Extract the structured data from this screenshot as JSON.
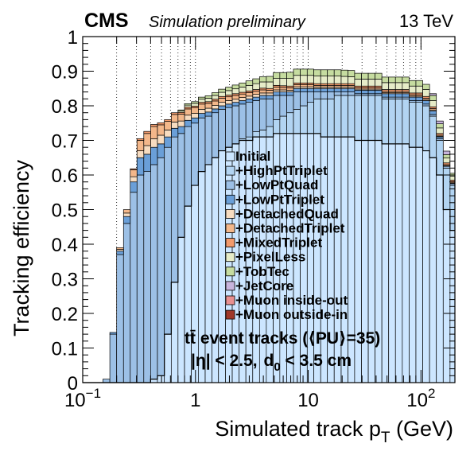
{
  "header": {
    "experiment": "CMS",
    "status": "Simulation preliminary",
    "energy": "13 TeV"
  },
  "chart_data": {
    "type": "area",
    "title": "",
    "xlabel": "Simulated track p",
    "xlabel_subscript": "T",
    "xlabel_unit": " (GeV)",
    "ylabel": "Tracking efficiency",
    "xscale": "log",
    "xlim": [
      0.1,
      200
    ],
    "ylim": [
      0,
      1
    ],
    "grid": "vertical dotted",
    "legend_position": "center-right",
    "x_tick_labels": [
      {
        "value": 0.1,
        "base": "10",
        "exp": "−1"
      },
      {
        "value": 1,
        "base": "1",
        "exp": ""
      },
      {
        "value": 10,
        "base": "10",
        "exp": ""
      },
      {
        "value": 100,
        "base": "10",
        "exp": "2"
      }
    ],
    "y_tick_labels": [
      "0",
      "0.1",
      "0.2",
      "0.3",
      "0.4",
      "0.5",
      "0.6",
      "0.7",
      "0.8",
      "0.9",
      "1"
    ],
    "bin_edges": [
      0.1,
      0.115,
      0.132,
      0.151,
      0.174,
      0.2,
      0.23,
      0.264,
      0.303,
      0.348,
      0.4,
      0.46,
      0.53,
      0.61,
      0.7,
      0.8,
      0.92,
      1.06,
      1.22,
      1.4,
      1.6,
      1.85,
      2.12,
      2.44,
      2.8,
      3.22,
      3.7,
      4.25,
      4.9,
      5.6,
      6.45,
      7.4,
      8.5,
      9.8,
      11.2,
      12.9,
      14.8,
      17.0,
      19.6,
      22.5,
      25.8,
      29.7,
      34.1,
      39.2,
      45.0,
      51.7,
      59.4,
      68.3,
      78.5,
      90.2,
      103.7,
      119.2,
      137.0,
      157.5,
      181.0,
      200.0
    ],
    "series": [
      {
        "name": "Initial",
        "color": "#cce6ff",
        "values": [
          0,
          0,
          0,
          0,
          0,
          0,
          0,
          0,
          0,
          0,
          0.01,
          0.02,
          0.14,
          0.29,
          0.42,
          0.51,
          0.57,
          0.61,
          0.63,
          0.65,
          0.67,
          0.68,
          0.69,
          0.7,
          0.7,
          0.71,
          0.71,
          0.71,
          0.72,
          0.72,
          0.72,
          0.72,
          0.72,
          0.72,
          0.72,
          0.71,
          0.71,
          0.71,
          0.71,
          0.71,
          0.7,
          0.7,
          0.7,
          0.7,
          0.69,
          0.69,
          0.69,
          0.69,
          0.68,
          0.68,
          0.67,
          0.65,
          0.6,
          0.5,
          0.44
        ]
      },
      {
        "name": "+HighPtTriplet",
        "color": "#b2d4f2",
        "values": [
          0,
          0,
          0,
          0,
          0,
          0,
          0,
          0,
          0,
          0,
          0,
          0,
          0,
          0,
          0,
          0,
          0,
          0,
          0,
          0,
          0,
          0,
          0,
          0.005,
          0.01,
          0.015,
          0.02,
          0.03,
          0.04,
          0.05,
          0.06,
          0.07,
          0.08,
          0.09,
          0.1,
          0.11,
          0.11,
          0.12,
          0.12,
          0.12,
          0.13,
          0.13,
          0.13,
          0.13,
          0.13,
          0.13,
          0.13,
          0.13,
          0.13,
          0.13,
          0.13,
          0.12,
          0.1,
          0.12,
          0.13
        ]
      },
      {
        "name": "+LowPtQuad",
        "color": "#9cc0e6",
        "values": [
          0,
          0,
          0,
          0.01,
          0.14,
          0.37,
          0.46,
          0.55,
          0.6,
          0.61,
          0.62,
          0.63,
          0.54,
          0.42,
          0.3,
          0.23,
          0.18,
          0.155,
          0.14,
          0.13,
          0.12,
          0.115,
          0.11,
          0.1,
          0.1,
          0.09,
          0.09,
          0.08,
          0.07,
          0.06,
          0.05,
          0.05,
          0.04,
          0.03,
          0.02,
          0.02,
          0.02,
          0.01,
          0.01,
          0.01,
          0.005,
          0.005,
          0.005,
          0.005,
          0.005,
          0.005,
          0.005,
          0.005,
          0.005,
          0.005,
          0.005,
          0.005,
          0.005,
          0.005,
          0.005
        ]
      },
      {
        "name": "+LowPtTriplet",
        "color": "#6a9fd8",
        "values": [
          0,
          0,
          0,
          0,
          0.005,
          0.01,
          0.02,
          0.03,
          0.05,
          0.05,
          0.05,
          0.04,
          0.03,
          0.025,
          0.02,
          0.018,
          0.015,
          0.013,
          0.012,
          0.011,
          0.01,
          0.01,
          0.01,
          0.01,
          0.01,
          0.01,
          0.01,
          0.01,
          0.01,
          0.01,
          0.01,
          0.01,
          0.01,
          0.01,
          0.01,
          0.01,
          0.01,
          0.01,
          0.01,
          0.01,
          0.01,
          0.01,
          0.01,
          0.01,
          0.01,
          0.01,
          0.01,
          0.01,
          0.01,
          0.01,
          0.01,
          0.01,
          0.005,
          0,
          0
        ]
      },
      {
        "name": "+DetachedQuad",
        "color": "#f7dcc0",
        "values": [
          0,
          0,
          0,
          0,
          0,
          0.005,
          0.01,
          0.015,
          0.02,
          0.025,
          0.025,
          0.025,
          0.02,
          0.018,
          0.016,
          0.015,
          0.013,
          0.012,
          0.011,
          0.01,
          0.01,
          0.01,
          0.009,
          0.009,
          0.008,
          0.008,
          0.007,
          0.007,
          0.006,
          0.006,
          0.005,
          0.005,
          0.005,
          0.005,
          0.004,
          0.004,
          0.004,
          0.004,
          0.004,
          0.004,
          0.003,
          0.003,
          0.003,
          0.003,
          0.003,
          0.003,
          0.003,
          0.003,
          0.003,
          0.003,
          0.003,
          0.003,
          0.002,
          0.002,
          0.002
        ]
      },
      {
        "name": "+DetachedTriplet",
        "color": "#f3b78a",
        "values": [
          0,
          0,
          0,
          0,
          0,
          0.005,
          0.01,
          0.02,
          0.03,
          0.035,
          0.035,
          0.03,
          0.025,
          0.022,
          0.02,
          0.018,
          0.016,
          0.015,
          0.014,
          0.013,
          0.012,
          0.011,
          0.011,
          0.01,
          0.01,
          0.009,
          0.009,
          0.008,
          0.008,
          0.007,
          0.007,
          0.006,
          0.006,
          0.006,
          0.005,
          0.005,
          0.005,
          0.005,
          0.005,
          0.005,
          0.004,
          0.004,
          0.004,
          0.004,
          0.004,
          0.004,
          0.004,
          0.004,
          0.004,
          0.004,
          0.004,
          0.004,
          0.003,
          0.003,
          0.003
        ]
      },
      {
        "name": "+MixedTriplet",
        "color": "#f29a6c",
        "values": [
          0,
          0,
          0,
          0,
          0,
          0,
          0,
          0.003,
          0.005,
          0.006,
          0.006,
          0.006,
          0.005,
          0.005,
          0.005,
          0.005,
          0.005,
          0.005,
          0.005,
          0.005,
          0.005,
          0.005,
          0.005,
          0.005,
          0.005,
          0.005,
          0.005,
          0.005,
          0.005,
          0.005,
          0.005,
          0.005,
          0.005,
          0.005,
          0.005,
          0.005,
          0.005,
          0.005,
          0.005,
          0.005,
          0.005,
          0.005,
          0.005,
          0.005,
          0.005,
          0.005,
          0.005,
          0.005,
          0.005,
          0.005,
          0.005,
          0.005,
          0.005,
          0.005,
          0.005
        ]
      },
      {
        "name": "+PixelLess",
        "color": "#e6ecc8",
        "values": [
          0,
          0,
          0,
          0,
          0,
          0,
          0,
          0,
          0,
          0,
          0,
          0,
          0,
          0,
          0.004,
          0.006,
          0.008,
          0.009,
          0.01,
          0.011,
          0.012,
          0.013,
          0.014,
          0.015,
          0.016,
          0.017,
          0.018,
          0.019,
          0.02,
          0.021,
          0.022,
          0.022,
          0.022,
          0.022,
          0.022,
          0.022,
          0.022,
          0.022,
          0.021,
          0.02,
          0.02,
          0.02,
          0.02,
          0.02,
          0.02,
          0.02,
          0.02,
          0.02,
          0.02,
          0.02,
          0.02,
          0.018,
          0.016,
          0.014,
          0.012
        ]
      },
      {
        "name": "+TobTec",
        "color": "#c6dca0",
        "values": [
          0,
          0,
          0,
          0,
          0,
          0,
          0,
          0,
          0,
          0,
          0,
          0,
          0,
          0,
          0.003,
          0.004,
          0.005,
          0.006,
          0.007,
          0.008,
          0.009,
          0.01,
          0.011,
          0.012,
          0.013,
          0.014,
          0.015,
          0.016,
          0.017,
          0.017,
          0.018,
          0.018,
          0.018,
          0.018,
          0.018,
          0.018,
          0.018,
          0.018,
          0.018,
          0.018,
          0.017,
          0.017,
          0.017,
          0.017,
          0.016,
          0.016,
          0.016,
          0.016,
          0.016,
          0.016,
          0.015,
          0.015,
          0.012,
          0.01,
          0.008
        ]
      },
      {
        "name": "+JetCore",
        "color": "#c8b4dc",
        "values": [
          0,
          0,
          0,
          0,
          0,
          0,
          0,
          0,
          0,
          0,
          0,
          0,
          0,
          0,
          0,
          0,
          0,
          0,
          0,
          0,
          0,
          0,
          0,
          0,
          0,
          0,
          0,
          0,
          0,
          0,
          0,
          0,
          0,
          0,
          0,
          0,
          0,
          0,
          0,
          0,
          0,
          0,
          0,
          0,
          0,
          0,
          0,
          0,
          0,
          0,
          0,
          0.005,
          0.008,
          0.01,
          0
        ]
      },
      {
        "name": "+Muon inside-out",
        "color": "#e89090",
        "values": [
          0,
          0,
          0,
          0,
          0,
          0,
          0,
          0,
          0,
          0,
          0,
          0,
          0,
          0,
          0,
          0,
          0,
          0,
          0,
          0,
          0,
          0,
          0,
          0,
          0,
          0,
          0,
          0,
          0,
          0,
          0,
          0,
          0,
          0,
          0,
          0,
          0,
          0,
          0,
          0,
          0,
          0,
          0,
          0,
          0,
          0,
          0,
          0,
          0,
          0,
          0,
          0,
          0,
          0,
          0
        ]
      },
      {
        "name": "+Muon outside-in",
        "color": "#a03828",
        "values": [
          0,
          0,
          0,
          0,
          0,
          0,
          0,
          0,
          0,
          0,
          0,
          0,
          0,
          0,
          0,
          0,
          0,
          0,
          0,
          0,
          0,
          0,
          0,
          0,
          0,
          0,
          0,
          0,
          0,
          0,
          0,
          0,
          0,
          0,
          0,
          0,
          0,
          0,
          0,
          0,
          0,
          0,
          0,
          0,
          0,
          0,
          0,
          0,
          0,
          0,
          0,
          0,
          0,
          0,
          0
        ]
      }
    ],
    "annotations": [
      {
        "id": "sample",
        "text": "tt̄ event tracks (⟨PU⟩=35)"
      },
      {
        "id": "cuts_eta",
        "text": "|η| < 2.5,"
      },
      {
        "id": "cuts_d0_base",
        "text": "d"
      },
      {
        "id": "cuts_d0_sub",
        "text": "0"
      },
      {
        "id": "cuts_d0_rest",
        "text": " < 3.5 cm"
      }
    ]
  }
}
